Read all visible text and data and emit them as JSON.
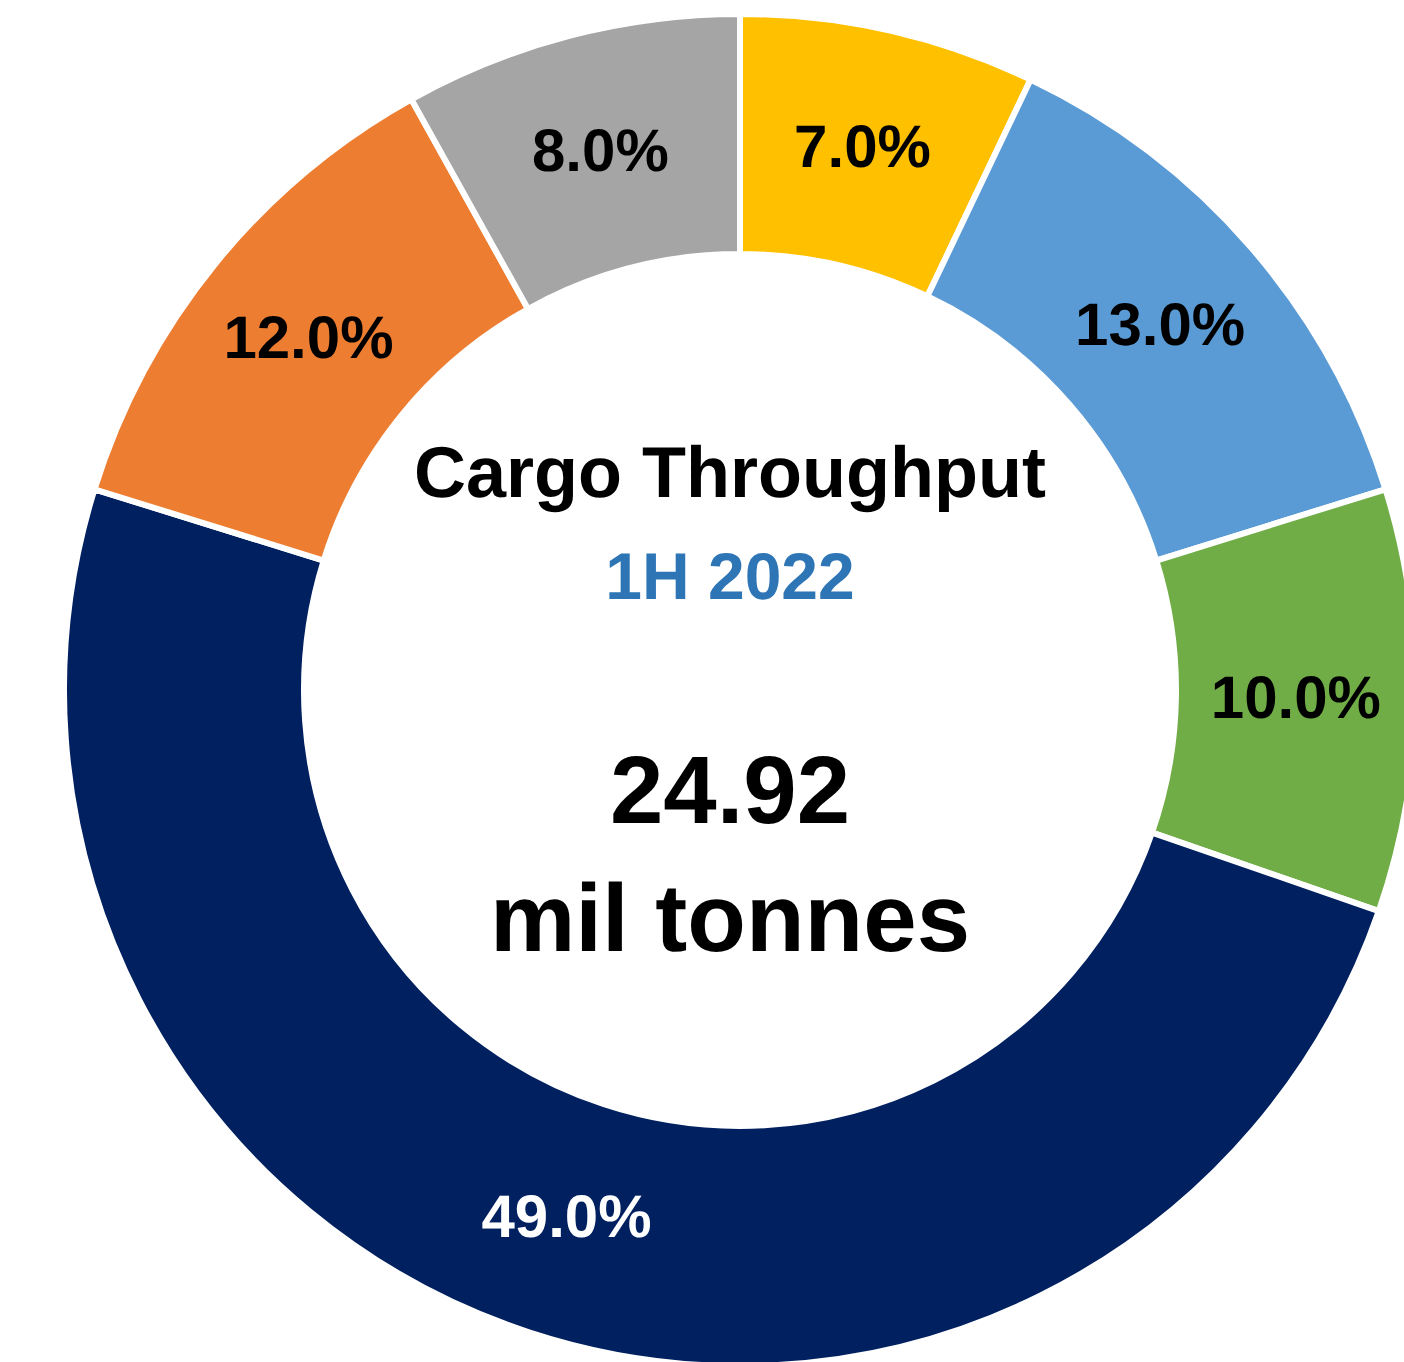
{
  "chart_data": {
    "type": "donut",
    "title": "Cargo Throughput",
    "subtitle": "1H 2022",
    "annotations": [
      "24.92",
      "mil tonnes"
    ],
    "categories": [
      null,
      null,
      null,
      null,
      null,
      null
    ],
    "values": [
      7,
      13,
      10,
      49,
      12,
      8
    ],
    "value_labels": [
      "7.0%",
      "13.0%",
      "10.0%",
      "49.0%",
      "12.0%",
      "8.0%"
    ],
    "colors": [
      "#ffc000",
      "#5b9bd5",
      "#70ad47",
      "#002060",
      "#ed7d31",
      "#a5a5a5"
    ],
    "legend": false
  }
}
